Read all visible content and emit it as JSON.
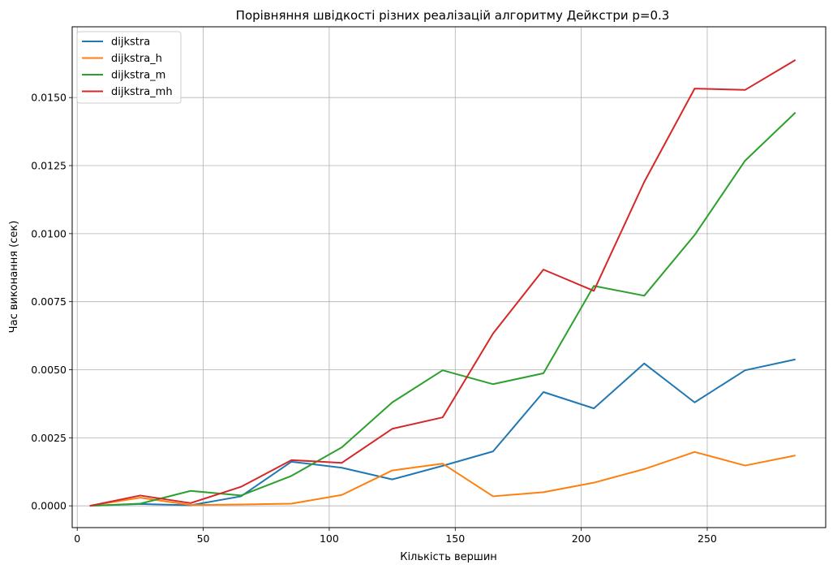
{
  "chart_data": {
    "type": "line",
    "title": "Порівняння швідкості різних реалізацій алгоритму Дейкстри p=0.3",
    "xlabel": "Кількість вершин",
    "ylabel": "Час виконання (сек)",
    "xlim": [
      -2,
      297
    ],
    "ylim": [
      -0.0008,
      0.0176
    ],
    "xticks": [
      0,
      50,
      100,
      150,
      200,
      250
    ],
    "yticks": [
      0.0,
      0.0025,
      0.005,
      0.0075,
      0.01,
      0.0125,
      0.015
    ],
    "xtick_labels": [
      "0",
      "50",
      "100",
      "150",
      "200",
      "250"
    ],
    "ytick_labels": [
      "0.0000",
      "0.0025",
      "0.0050",
      "0.0075",
      "0.0100",
      "0.0125",
      "0.0150"
    ],
    "grid": true,
    "legend_position": "top-left",
    "x": [
      5,
      25,
      45,
      65,
      85,
      105,
      125,
      145,
      165,
      185,
      205,
      225,
      245,
      265,
      285
    ],
    "series": [
      {
        "name": "dijkstra",
        "color": "#1f77b4",
        "values": [
          0.0,
          7e-05,
          2e-05,
          0.00035,
          0.00162,
          0.0014,
          0.00097,
          0.00147,
          0.002,
          0.00418,
          0.00358,
          0.00523,
          0.0038,
          0.00498,
          0.00538
        ]
      },
      {
        "name": "dijkstra_h",
        "color": "#ff7f0e",
        "values": [
          0.0,
          0.0003,
          3e-05,
          5e-05,
          8e-05,
          0.0004,
          0.0013,
          0.00155,
          0.00035,
          0.0005,
          0.00085,
          0.00135,
          0.00198,
          0.00148,
          0.00185
        ]
      },
      {
        "name": "dijkstra_m",
        "color": "#2ca02c",
        "values": [
          0.0,
          8e-05,
          0.00055,
          0.00038,
          0.0011,
          0.00215,
          0.0038,
          0.00498,
          0.00447,
          0.00487,
          0.00808,
          0.00772,
          0.00995,
          0.01268,
          0.01445
        ]
      },
      {
        "name": "dijkstra_mh",
        "color": "#d62728",
        "values": [
          0.0,
          0.00038,
          0.0001,
          0.0007,
          0.00168,
          0.00158,
          0.00283,
          0.00325,
          0.00633,
          0.00868,
          0.0079,
          0.0119,
          0.01533,
          0.01528,
          0.01638
        ]
      }
    ]
  }
}
